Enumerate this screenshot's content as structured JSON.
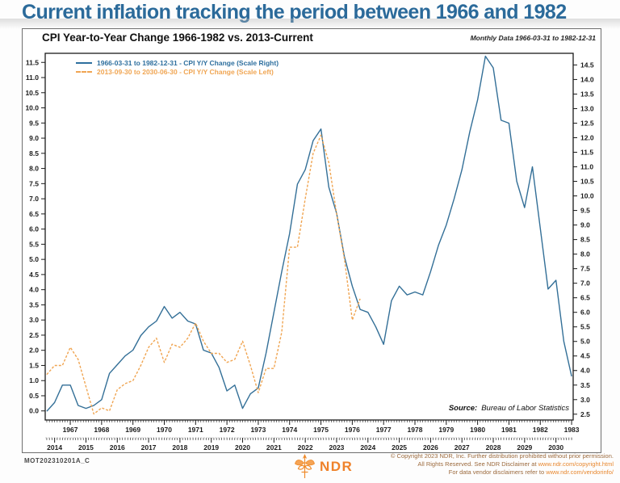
{
  "header": {
    "title": "Current inflation tracking the period between 1966 and 1982"
  },
  "panel": {
    "title": "CPI Year-to-Year Change 1966-1982 vs. 2013-Current",
    "subtitle": "Monthly Data 1966-03-31 to 1982-12-31",
    "source_label": "Source:",
    "source_value": "Bureau of Labor Statistics"
  },
  "legend": [
    {
      "label": "1966-03-31 to 1982-12-31 - CPI Y/Y Change (Scale Right)",
      "color": "#2e6f9e",
      "style": "solid"
    },
    {
      "label": "2013-09-30 to 2030-06-30 - CPI Y/Y Change (Scale Left)",
      "color": "#f0a552",
      "style": "dashed"
    }
  ],
  "chart_data": {
    "type": "line",
    "title": "CPI Year-to-Year Change 1966-1982 vs. 2013-Current",
    "subtitle": "Monthly Data 1966-03-31 to 1982-12-31",
    "grid": false,
    "legend_position": "top-left",
    "x_axis_top": {
      "labels": [
        1967,
        1968,
        1969,
        1970,
        1971,
        1972,
        1973,
        1974,
        1975,
        1976,
        1977,
        1978,
        1979,
        1980,
        1981,
        1982,
        1983
      ],
      "range": [
        1966.2,
        1983.05
      ]
    },
    "x_axis_bottom": {
      "labels": [
        2014,
        2015,
        2016,
        2017,
        2018,
        2019,
        2020,
        2021,
        2022,
        2023,
        2024,
        2025,
        2026,
        2027,
        2028,
        2029,
        2030
      ],
      "offset_years": 47.5
    },
    "y_left": {
      "ticks": [
        "0.0",
        "0.5",
        "1.0",
        "1.5",
        "2.0",
        "2.5",
        "3.0",
        "3.5",
        "4.0",
        "4.5",
        "5.0",
        "5.5",
        "6.0",
        "6.5",
        "7.0",
        "7.5",
        "8.0",
        "8.5",
        "9.0",
        "9.5",
        "10.0",
        "10.5",
        "11.0",
        "11.5"
      ],
      "range": [
        -0.3,
        11.8
      ],
      "applies_to": "2013-Current series (CPI Y/Y %)"
    },
    "y_right": {
      "ticks": [
        "2.5",
        "3.0",
        "3.5",
        "4.0",
        "4.5",
        "5.0",
        "5.5",
        "6.0",
        "6.5",
        "7.0",
        "7.5",
        "8.0",
        "8.5",
        "9.0",
        "9.5",
        "10.0",
        "10.5",
        "11.0",
        "11.5",
        "12.0",
        "12.5",
        "13.0",
        "13.5",
        "14.0",
        "14.5"
      ],
      "range": [
        2.3,
        14.9
      ],
      "applies_to": "1966-1982 series (CPI Y/Y %)"
    },
    "series": [
      {
        "name": "1966-03-31 to 1982-12-31 - CPI Y/Y Change (Scale Right)",
        "axis": "right",
        "color": "#336f97",
        "dash": null,
        "points": [
          [
            1966.25,
            2.6
          ],
          [
            1966.5,
            2.9
          ],
          [
            1966.75,
            3.5
          ],
          [
            1967.0,
            3.5
          ],
          [
            1967.25,
            2.8
          ],
          [
            1967.5,
            2.7
          ],
          [
            1967.75,
            2.8
          ],
          [
            1968.0,
            3.0
          ],
          [
            1968.25,
            3.9
          ],
          [
            1968.5,
            4.2
          ],
          [
            1968.75,
            4.5
          ],
          [
            1969.0,
            4.7
          ],
          [
            1969.25,
            5.2
          ],
          [
            1969.5,
            5.5
          ],
          [
            1969.75,
            5.7
          ],
          [
            1970.0,
            6.2
          ],
          [
            1970.25,
            5.8
          ],
          [
            1970.5,
            6.0
          ],
          [
            1970.75,
            5.7
          ],
          [
            1971.0,
            5.6
          ],
          [
            1971.25,
            4.7
          ],
          [
            1971.5,
            4.6
          ],
          [
            1971.75,
            4.1
          ],
          [
            1972.0,
            3.3
          ],
          [
            1972.25,
            3.5
          ],
          [
            1972.5,
            2.7
          ],
          [
            1972.75,
            3.2
          ],
          [
            1973.0,
            3.4
          ],
          [
            1973.25,
            4.6
          ],
          [
            1973.5,
            6.0
          ],
          [
            1973.75,
            7.4
          ],
          [
            1974.0,
            8.7
          ],
          [
            1974.25,
            10.4
          ],
          [
            1974.5,
            10.9
          ],
          [
            1974.75,
            11.9
          ],
          [
            1975.0,
            12.3
          ],
          [
            1975.25,
            10.3
          ],
          [
            1975.5,
            9.4
          ],
          [
            1975.75,
            7.9
          ],
          [
            1976.0,
            6.9
          ],
          [
            1976.25,
            6.1
          ],
          [
            1976.5,
            6.0
          ],
          [
            1976.75,
            5.5
          ],
          [
            1977.0,
            4.9
          ],
          [
            1977.25,
            6.4
          ],
          [
            1977.5,
            6.9
          ],
          [
            1977.75,
            6.6
          ],
          [
            1978.0,
            6.7
          ],
          [
            1978.25,
            6.6
          ],
          [
            1978.5,
            7.4
          ],
          [
            1978.75,
            8.3
          ],
          [
            1979.0,
            9.0
          ],
          [
            1979.25,
            9.9
          ],
          [
            1979.5,
            10.9
          ],
          [
            1979.75,
            12.2
          ],
          [
            1980.0,
            13.3
          ],
          [
            1980.25,
            14.8
          ],
          [
            1980.5,
            14.4
          ],
          [
            1980.75,
            12.6
          ],
          [
            1981.0,
            12.5
          ],
          [
            1981.25,
            10.5
          ],
          [
            1981.5,
            9.6
          ],
          [
            1981.75,
            11.0
          ],
          [
            1982.0,
            8.9
          ],
          [
            1982.25,
            6.8
          ],
          [
            1982.5,
            7.1
          ],
          [
            1982.75,
            5.0
          ],
          [
            1983.0,
            3.8
          ]
        ]
      },
      {
        "name": "2013-09-30 to 2030-06-30 - CPI Y/Y Change (Scale Left)",
        "axis": "left",
        "color": "#f0a552",
        "dash": [
          3,
          2
        ],
        "points": [
          [
            2013.75,
            1.2
          ],
          [
            2014.0,
            1.5
          ],
          [
            2014.25,
            1.5
          ],
          [
            2014.5,
            2.1
          ],
          [
            2014.75,
            1.7
          ],
          [
            2015.0,
            0.8
          ],
          [
            2015.25,
            -0.1
          ],
          [
            2015.5,
            0.1
          ],
          [
            2015.75,
            0.0
          ],
          [
            2016.0,
            0.7
          ],
          [
            2016.25,
            0.9
          ],
          [
            2016.5,
            1.0
          ],
          [
            2016.75,
            1.5
          ],
          [
            2017.0,
            2.1
          ],
          [
            2017.25,
            2.4
          ],
          [
            2017.5,
            1.6
          ],
          [
            2017.75,
            2.2
          ],
          [
            2018.0,
            2.1
          ],
          [
            2018.25,
            2.4
          ],
          [
            2018.5,
            2.9
          ],
          [
            2018.75,
            2.3
          ],
          [
            2019.0,
            1.9
          ],
          [
            2019.25,
            1.9
          ],
          [
            2019.5,
            1.6
          ],
          [
            2019.75,
            1.7
          ],
          [
            2020.0,
            2.3
          ],
          [
            2020.25,
            1.5
          ],
          [
            2020.5,
            0.6
          ],
          [
            2020.75,
            1.4
          ],
          [
            2021.0,
            1.4
          ],
          [
            2021.25,
            2.6
          ],
          [
            2021.5,
            5.4
          ],
          [
            2021.75,
            5.4
          ],
          [
            2022.0,
            7.0
          ],
          [
            2022.25,
            8.5
          ],
          [
            2022.5,
            9.1
          ],
          [
            2022.75,
            8.2
          ],
          [
            2023.0,
            6.5
          ],
          [
            2023.25,
            5.0
          ],
          [
            2023.5,
            3.0
          ],
          [
            2023.75,
            3.7
          ]
        ]
      }
    ]
  },
  "footer": {
    "chart_id": "MOT202310201A_C",
    "logo_text": "NDR",
    "copyright": [
      {
        "text": "© Copyright 2023 NDR, Inc. Further distribution prohibited without prior permission.",
        "link": ""
      },
      {
        "text": "All Rights Reserved. See NDR Disclaimer at ",
        "link": "www.ndr.com/copyright.html"
      },
      {
        "text": "For data vendor disclaimers refer to ",
        "link": "www.ndr.com/vendorinfo/"
      }
    ]
  }
}
